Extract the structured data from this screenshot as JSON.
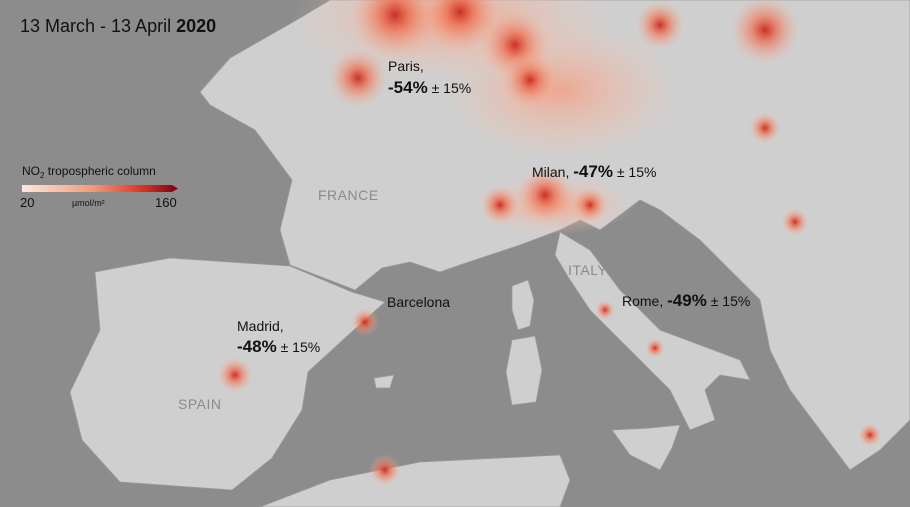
{
  "date_range": {
    "period": "13 March - 13 April",
    "year": "2020"
  },
  "legend": {
    "title_base": "NO",
    "title_subscript": "2",
    "title_rest": "tropospheric column",
    "min_label": "20",
    "max_label": "160",
    "unit": "µmol/m²"
  },
  "cities": [
    {
      "name": "Paris,",
      "change": "-54%",
      "uncertainty": "± 15%"
    },
    {
      "name": "Milan,",
      "change": "-47%",
      "uncertainty": "± 15%"
    },
    {
      "name": "Rome,",
      "change": "-49%",
      "uncertainty": "± 15%"
    },
    {
      "name": "Madrid,",
      "change": "-48%",
      "uncertainty": "± 15%"
    }
  ],
  "place_labels": {
    "barcelona": "Barcelona",
    "france": "FRANCE",
    "spain": "SPAIN",
    "italy": "ITALY"
  }
}
